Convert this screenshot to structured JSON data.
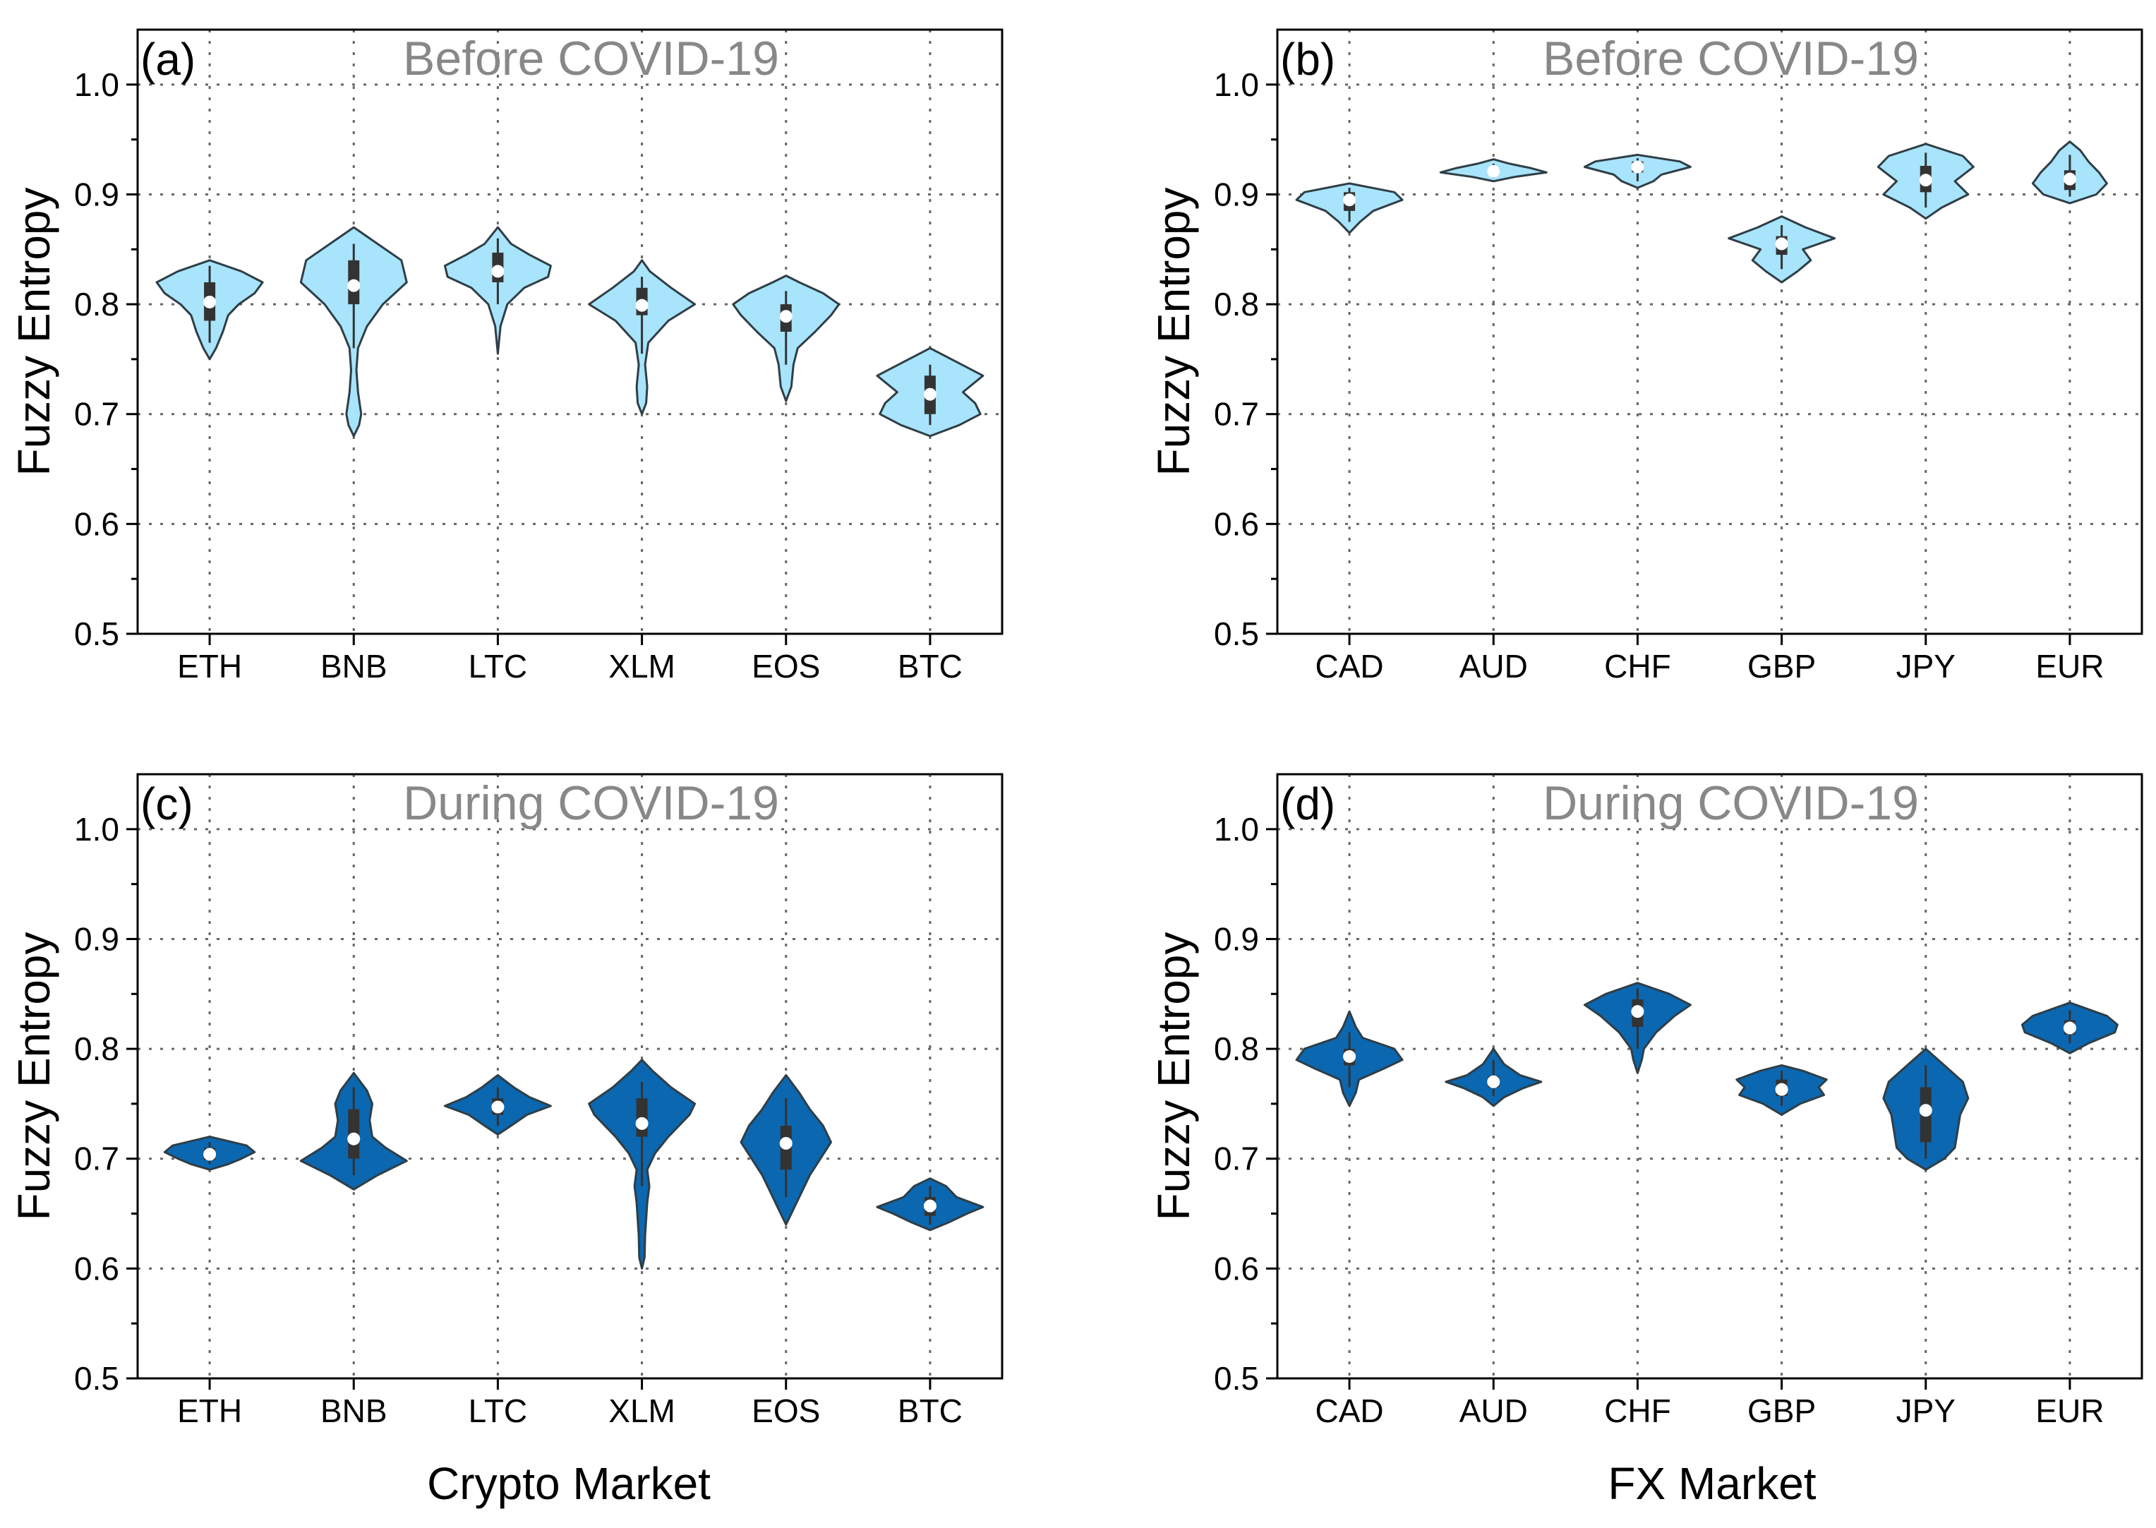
{
  "chart_data": [
    {
      "type": "violin",
      "panel_label": "(a)",
      "title": "Before COVID-19",
      "xlabel": "",
      "ylabel": "Fuzzy Entropy",
      "ylim": [
        0.5,
        1.05
      ],
      "yticks": [
        "0.5",
        "0.6",
        "0.7",
        "0.8",
        "0.9",
        "1.0"
      ],
      "grid": true,
      "fill_color": "#a8e4fb",
      "categories": [
        "ETH",
        "BNB",
        "LTC",
        "XLM",
        "EOS",
        "BTC"
      ],
      "stats": [
        {
          "min": 0.75,
          "max": 0.84,
          "q1": 0.785,
          "q3": 0.82,
          "wlo": 0.765,
          "whi": 0.835,
          "median": 0.802
        },
        {
          "min": 0.68,
          "max": 0.87,
          "q1": 0.8,
          "q3": 0.84,
          "wlo": 0.76,
          "whi": 0.855,
          "median": 0.817
        },
        {
          "min": 0.755,
          "max": 0.87,
          "q1": 0.82,
          "q3": 0.847,
          "wlo": 0.8,
          "whi": 0.86,
          "median": 0.83
        },
        {
          "min": 0.7,
          "max": 0.84,
          "q1": 0.79,
          "q3": 0.815,
          "wlo": 0.755,
          "whi": 0.825,
          "median": 0.799
        },
        {
          "min": 0.712,
          "max": 0.826,
          "q1": 0.775,
          "q3": 0.8,
          "wlo": 0.745,
          "whi": 0.812,
          "median": 0.789
        },
        {
          "min": 0.68,
          "max": 0.76,
          "q1": 0.7,
          "q3": 0.735,
          "wlo": 0.69,
          "whi": 0.745,
          "median": 0.718
        }
      ],
      "density": [
        [
          [
            0.75,
            0
          ],
          [
            0.76,
            0.12
          ],
          [
            0.775,
            0.25
          ],
          [
            0.79,
            0.35
          ],
          [
            0.8,
            0.55
          ],
          [
            0.81,
            0.85
          ],
          [
            0.82,
            1.0
          ],
          [
            0.83,
            0.6
          ],
          [
            0.84,
            0
          ]
        ],
        [
          [
            0.68,
            0
          ],
          [
            0.69,
            0.1
          ],
          [
            0.7,
            0.14
          ],
          [
            0.72,
            0.08
          ],
          [
            0.74,
            0.05
          ],
          [
            0.76,
            0.08
          ],
          [
            0.78,
            0.25
          ],
          [
            0.8,
            0.55
          ],
          [
            0.82,
            1.0
          ],
          [
            0.84,
            0.9
          ],
          [
            0.855,
            0.45
          ],
          [
            0.87,
            0
          ]
        ],
        [
          [
            0.755,
            0
          ],
          [
            0.78,
            0.05
          ],
          [
            0.8,
            0.18
          ],
          [
            0.815,
            0.5
          ],
          [
            0.825,
            0.95
          ],
          [
            0.835,
            1.0
          ],
          [
            0.845,
            0.6
          ],
          [
            0.855,
            0.25
          ],
          [
            0.87,
            0
          ]
        ],
        [
          [
            0.7,
            0
          ],
          [
            0.71,
            0.08
          ],
          [
            0.725,
            0.1
          ],
          [
            0.745,
            0.06
          ],
          [
            0.765,
            0.12
          ],
          [
            0.785,
            0.5
          ],
          [
            0.8,
            1.0
          ],
          [
            0.815,
            0.55
          ],
          [
            0.83,
            0.15
          ],
          [
            0.84,
            0
          ]
        ],
        [
          [
            0.712,
            0
          ],
          [
            0.725,
            0.1
          ],
          [
            0.745,
            0.14
          ],
          [
            0.76,
            0.22
          ],
          [
            0.775,
            0.55
          ],
          [
            0.79,
            0.85
          ],
          [
            0.8,
            1.0
          ],
          [
            0.81,
            0.7
          ],
          [
            0.82,
            0.25
          ],
          [
            0.826,
            0
          ]
        ],
        [
          [
            0.68,
            0
          ],
          [
            0.69,
            0.55
          ],
          [
            0.7,
            0.95
          ],
          [
            0.71,
            0.85
          ],
          [
            0.72,
            0.62
          ],
          [
            0.735,
            1.0
          ],
          [
            0.745,
            0.6
          ],
          [
            0.76,
            0
          ]
        ]
      ]
    },
    {
      "type": "violin",
      "panel_label": "(b)",
      "title": "Before COVID-19",
      "xlabel": "",
      "ylabel": "Fuzzy Entropy",
      "ylim": [
        0.5,
        1.05
      ],
      "yticks": [
        "0.5",
        "0.6",
        "0.7",
        "0.8",
        "0.9",
        "1.0"
      ],
      "grid": true,
      "fill_color": "#a8e4fb",
      "categories": [
        "CAD",
        "AUD",
        "CHF",
        "GBP",
        "JPY",
        "EUR"
      ],
      "stats": [
        {
          "min": 0.865,
          "max": 0.91,
          "q1": 0.885,
          "q3": 0.902,
          "wlo": 0.875,
          "whi": 0.906,
          "median": 0.895
        },
        {
          "min": 0.912,
          "max": 0.932,
          "q1": 0.918,
          "q3": 0.924,
          "wlo": 0.915,
          "whi": 0.928,
          "median": 0.921
        },
        {
          "min": 0.906,
          "max": 0.936,
          "q1": 0.92,
          "q3": 0.93,
          "wlo": 0.912,
          "whi": 0.933,
          "median": 0.925
        },
        {
          "min": 0.82,
          "max": 0.88,
          "q1": 0.845,
          "q3": 0.862,
          "wlo": 0.832,
          "whi": 0.872,
          "median": 0.855
        },
        {
          "min": 0.878,
          "max": 0.946,
          "q1": 0.902,
          "q3": 0.926,
          "wlo": 0.888,
          "whi": 0.938,
          "median": 0.913
        },
        {
          "min": 0.892,
          "max": 0.948,
          "q1": 0.904,
          "q3": 0.922,
          "wlo": 0.898,
          "whi": 0.936,
          "median": 0.914
        }
      ],
      "density": [
        [
          [
            0.865,
            0
          ],
          [
            0.875,
            0.2
          ],
          [
            0.885,
            0.45
          ],
          [
            0.895,
            1.0
          ],
          [
            0.902,
            0.85
          ],
          [
            0.91,
            0
          ]
        ],
        [
          [
            0.912,
            0
          ],
          [
            0.916,
            0.4
          ],
          [
            0.92,
            1.0
          ],
          [
            0.924,
            0.7
          ],
          [
            0.928,
            0.3
          ],
          [
            0.932,
            0
          ]
        ],
        [
          [
            0.906,
            0
          ],
          [
            0.912,
            0.3
          ],
          [
            0.918,
            0.45
          ],
          [
            0.925,
            1.0
          ],
          [
            0.93,
            0.8
          ],
          [
            0.936,
            0
          ]
        ],
        [
          [
            0.82,
            0
          ],
          [
            0.83,
            0.3
          ],
          [
            0.84,
            0.55
          ],
          [
            0.85,
            0.4
          ],
          [
            0.86,
            1.0
          ],
          [
            0.87,
            0.45
          ],
          [
            0.88,
            0
          ]
        ],
        [
          [
            0.878,
            0
          ],
          [
            0.888,
            0.3
          ],
          [
            0.9,
            0.8
          ],
          [
            0.912,
            0.55
          ],
          [
            0.925,
            0.9
          ],
          [
            0.935,
            0.7
          ],
          [
            0.946,
            0
          ]
        ],
        [
          [
            0.892,
            0
          ],
          [
            0.9,
            0.5
          ],
          [
            0.91,
            0.7
          ],
          [
            0.92,
            0.55
          ],
          [
            0.93,
            0.35
          ],
          [
            0.94,
            0.2
          ],
          [
            0.948,
            0
          ]
        ]
      ]
    },
    {
      "type": "violin",
      "panel_label": "(c)",
      "title": "During COVID-19",
      "xlabel": "Crypto Market",
      "ylabel": "Fuzzy Entropy",
      "ylim": [
        0.5,
        1.05
      ],
      "yticks": [
        "0.5",
        "0.6",
        "0.7",
        "0.8",
        "0.9",
        "1.0"
      ],
      "grid": true,
      "fill_color": "#0b67b0",
      "categories": [
        "ETH",
        "BNB",
        "LTC",
        "XLM",
        "EOS",
        "BTC"
      ],
      "stats": [
        {
          "min": 0.69,
          "max": 0.72,
          "q1": 0.699,
          "q3": 0.71,
          "wlo": 0.695,
          "whi": 0.715,
          "median": 0.704
        },
        {
          "min": 0.672,
          "max": 0.778,
          "q1": 0.7,
          "q3": 0.745,
          "wlo": 0.685,
          "whi": 0.765,
          "median": 0.718
        },
        {
          "min": 0.722,
          "max": 0.776,
          "q1": 0.74,
          "q3": 0.755,
          "wlo": 0.73,
          "whi": 0.765,
          "median": 0.747
        },
        {
          "min": 0.6,
          "max": 0.79,
          "q1": 0.72,
          "q3": 0.755,
          "wlo": 0.675,
          "whi": 0.77,
          "median": 0.732
        },
        {
          "min": 0.64,
          "max": 0.776,
          "q1": 0.69,
          "q3": 0.73,
          "wlo": 0.665,
          "whi": 0.755,
          "median": 0.714
        },
        {
          "min": 0.635,
          "max": 0.682,
          "q1": 0.648,
          "q3": 0.665,
          "wlo": 0.64,
          "whi": 0.675,
          "median": 0.657
        }
      ],
      "density": [
        [
          [
            0.69,
            0
          ],
          [
            0.695,
            0.35
          ],
          [
            0.7,
            0.6
          ],
          [
            0.706,
            0.85
          ],
          [
            0.712,
            0.7
          ],
          [
            0.72,
            0
          ]
        ],
        [
          [
            0.672,
            0
          ],
          [
            0.685,
            0.45
          ],
          [
            0.698,
            1.0
          ],
          [
            0.71,
            0.6
          ],
          [
            0.72,
            0.35
          ],
          [
            0.735,
            0.3
          ],
          [
            0.75,
            0.35
          ],
          [
            0.762,
            0.25
          ],
          [
            0.778,
            0
          ]
        ],
        [
          [
            0.722,
            0
          ],
          [
            0.73,
            0.25
          ],
          [
            0.74,
            0.55
          ],
          [
            0.748,
            1.0
          ],
          [
            0.756,
            0.6
          ],
          [
            0.765,
            0.3
          ],
          [
            0.776,
            0
          ]
        ],
        [
          [
            0.6,
            0
          ],
          [
            0.61,
            0.05
          ],
          [
            0.63,
            0.06
          ],
          [
            0.66,
            0.1
          ],
          [
            0.675,
            0.14
          ],
          [
            0.69,
            0.1
          ],
          [
            0.705,
            0.25
          ],
          [
            0.72,
            0.5
          ],
          [
            0.74,
            0.9
          ],
          [
            0.75,
            1.0
          ],
          [
            0.765,
            0.55
          ],
          [
            0.78,
            0.2
          ],
          [
            0.79,
            0
          ]
        ],
        [
          [
            0.64,
            0
          ],
          [
            0.655,
            0.15
          ],
          [
            0.67,
            0.3
          ],
          [
            0.685,
            0.45
          ],
          [
            0.7,
            0.65
          ],
          [
            0.715,
            0.85
          ],
          [
            0.73,
            0.7
          ],
          [
            0.745,
            0.45
          ],
          [
            0.76,
            0.25
          ],
          [
            0.776,
            0
          ]
        ],
        [
          [
            0.635,
            0
          ],
          [
            0.642,
            0.35
          ],
          [
            0.65,
            0.7
          ],
          [
            0.656,
            1.0
          ],
          [
            0.665,
            0.5
          ],
          [
            0.675,
            0.3
          ],
          [
            0.682,
            0
          ]
        ]
      ]
    },
    {
      "type": "violin",
      "panel_label": "(d)",
      "title": "During COVID-19",
      "xlabel": "FX Market",
      "ylabel": "Fuzzy Entropy",
      "ylim": [
        0.5,
        1.05
      ],
      "yticks": [
        "0.5",
        "0.6",
        "0.7",
        "0.8",
        "0.9",
        "1.0"
      ],
      "grid": true,
      "fill_color": "#0b67b0",
      "categories": [
        "CAD",
        "AUD",
        "CHF",
        "GBP",
        "JPY",
        "EUR"
      ],
      "stats": [
        {
          "min": 0.748,
          "max": 0.834,
          "q1": 0.785,
          "q3": 0.8,
          "wlo": 0.765,
          "whi": 0.815,
          "median": 0.793
        },
        {
          "min": 0.748,
          "max": 0.8,
          "q1": 0.765,
          "q3": 0.775,
          "wlo": 0.757,
          "whi": 0.79,
          "median": 0.77
        },
        {
          "min": 0.778,
          "max": 0.86,
          "q1": 0.82,
          "q3": 0.845,
          "wlo": 0.8,
          "whi": 0.855,
          "median": 0.834
        },
        {
          "min": 0.74,
          "max": 0.785,
          "q1": 0.757,
          "q3": 0.772,
          "wlo": 0.748,
          "whi": 0.78,
          "median": 0.763
        },
        {
          "min": 0.69,
          "max": 0.8,
          "q1": 0.715,
          "q3": 0.765,
          "wlo": 0.7,
          "whi": 0.785,
          "median": 0.744
        },
        {
          "min": 0.796,
          "max": 0.842,
          "q1": 0.813,
          "q3": 0.826,
          "wlo": 0.805,
          "whi": 0.835,
          "median": 0.819
        }
      ],
      "density": [
        [
          [
            0.748,
            0
          ],
          [
            0.76,
            0.12
          ],
          [
            0.772,
            0.18
          ],
          [
            0.782,
            0.65
          ],
          [
            0.79,
            1.0
          ],
          [
            0.8,
            0.85
          ],
          [
            0.81,
            0.25
          ],
          [
            0.82,
            0.12
          ],
          [
            0.834,
            0
          ]
        ],
        [
          [
            0.748,
            0
          ],
          [
            0.756,
            0.2
          ],
          [
            0.764,
            0.55
          ],
          [
            0.77,
            0.9
          ],
          [
            0.776,
            0.5
          ],
          [
            0.786,
            0.2
          ],
          [
            0.8,
            0
          ]
        ],
        [
          [
            0.778,
            0
          ],
          [
            0.79,
            0.08
          ],
          [
            0.8,
            0.12
          ],
          [
            0.815,
            0.35
          ],
          [
            0.83,
            0.7
          ],
          [
            0.84,
            1.0
          ],
          [
            0.85,
            0.6
          ],
          [
            0.86,
            0
          ]
        ],
        [
          [
            0.74,
            0
          ],
          [
            0.75,
            0.35
          ],
          [
            0.758,
            0.8
          ],
          [
            0.765,
            0.7
          ],
          [
            0.772,
            0.85
          ],
          [
            0.78,
            0.4
          ],
          [
            0.785,
            0
          ]
        ],
        [
          [
            0.69,
            0
          ],
          [
            0.7,
            0.35
          ],
          [
            0.71,
            0.55
          ],
          [
            0.725,
            0.6
          ],
          [
            0.74,
            0.65
          ],
          [
            0.755,
            0.8
          ],
          [
            0.77,
            0.7
          ],
          [
            0.785,
            0.35
          ],
          [
            0.8,
            0
          ]
        ],
        [
          [
            0.796,
            0
          ],
          [
            0.805,
            0.35
          ],
          [
            0.815,
            0.85
          ],
          [
            0.822,
            0.9
          ],
          [
            0.83,
            0.7
          ],
          [
            0.842,
            0
          ]
        ]
      ]
    }
  ]
}
